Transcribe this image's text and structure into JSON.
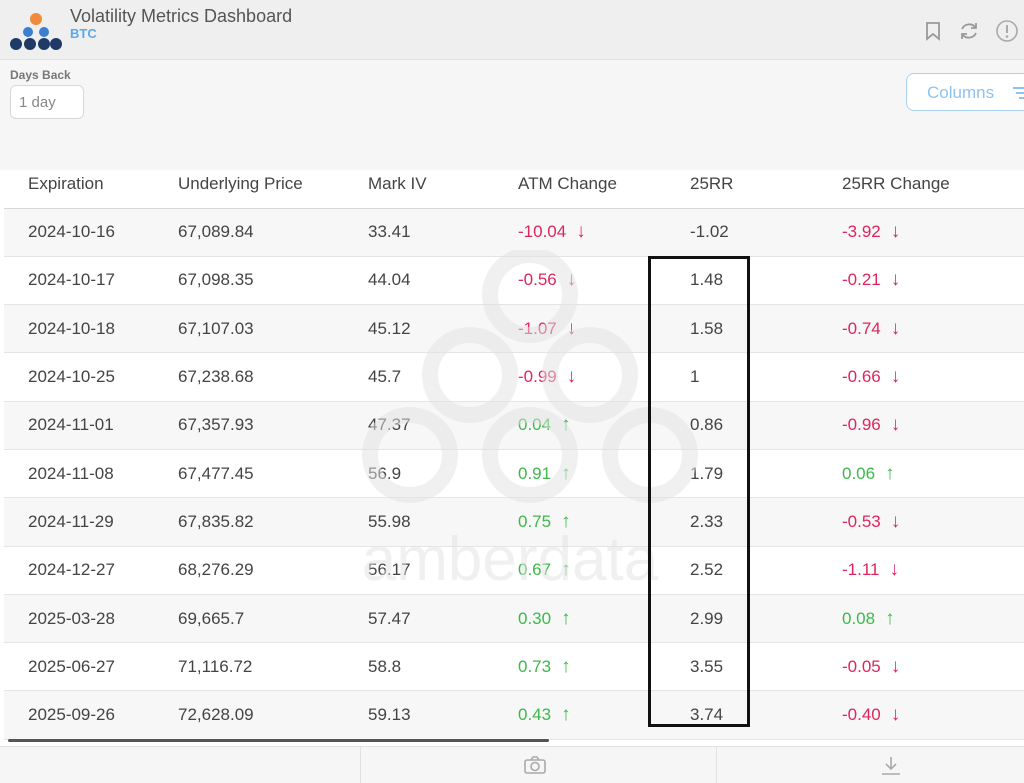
{
  "header": {
    "title": "Volatility Metrics Dashboard",
    "subtitle": "BTC",
    "icons": [
      "bookmark-icon",
      "refresh-icon",
      "info-icon"
    ]
  },
  "filters": {
    "days_back_label": "Days Back",
    "days_back_value": "1 day",
    "columns_label": "Columns"
  },
  "table": {
    "headers": [
      "Expiration",
      "Underlying Price",
      "Mark IV",
      "ATM Change",
      "25RR",
      "25RR Change"
    ],
    "rows": [
      {
        "exp": "2024-10-16",
        "und": "67,089.84",
        "mark": "33.41",
        "atm": "-10.04",
        "atm_dir": "down",
        "rr": "-1.02",
        "rrc": "-3.92",
        "rrc_dir": "down"
      },
      {
        "exp": "2024-10-17",
        "und": "67,098.35",
        "mark": "44.04",
        "atm": "-0.56",
        "atm_dir": "down",
        "rr": "1.48",
        "rrc": "-0.21",
        "rrc_dir": "down"
      },
      {
        "exp": "2024-10-18",
        "und": "67,107.03",
        "mark": "45.12",
        "atm": "-1.07",
        "atm_dir": "down",
        "rr": "1.58",
        "rrc": "-0.74",
        "rrc_dir": "down"
      },
      {
        "exp": "2024-10-25",
        "und": "67,238.68",
        "mark": "45.7",
        "atm": "-0.99",
        "atm_dir": "down",
        "rr": "1",
        "rrc": "-0.66",
        "rrc_dir": "down"
      },
      {
        "exp": "2024-11-01",
        "und": "67,357.93",
        "mark": "47.37",
        "atm": "0.04",
        "atm_dir": "up",
        "rr": "0.86",
        "rrc": "-0.96",
        "rrc_dir": "down"
      },
      {
        "exp": "2024-11-08",
        "und": "67,477.45",
        "mark": "56.9",
        "atm": "0.91",
        "atm_dir": "up",
        "rr": "1.79",
        "rrc": "0.06",
        "rrc_dir": "up"
      },
      {
        "exp": "2024-11-29",
        "und": "67,835.82",
        "mark": "55.98",
        "atm": "0.75",
        "atm_dir": "up",
        "rr": "2.33",
        "rrc": "-0.53",
        "rrc_dir": "down"
      },
      {
        "exp": "2024-12-27",
        "und": "68,276.29",
        "mark": "56.17",
        "atm": "0.67",
        "atm_dir": "up",
        "rr": "2.52",
        "rrc": "-1.11",
        "rrc_dir": "down"
      },
      {
        "exp": "2025-03-28",
        "und": "69,665.7",
        "mark": "57.47",
        "atm": "0.30",
        "atm_dir": "up",
        "rr": "2.99",
        "rrc": "0.08",
        "rrc_dir": "up"
      },
      {
        "exp": "2025-06-27",
        "und": "71,116.72",
        "mark": "58.8",
        "atm": "0.73",
        "atm_dir": "up",
        "rr": "3.55",
        "rrc": "-0.05",
        "rrc_dir": "down"
      },
      {
        "exp": "2025-09-26",
        "und": "72,628.09",
        "mark": "59.13",
        "atm": "0.43",
        "atm_dir": "up",
        "rr": "3.74",
        "rrc": "-0.40",
        "rrc_dir": "down"
      }
    ]
  },
  "watermark": {
    "text": "amberdata"
  },
  "footer": {
    "icons": [
      "camera-icon",
      "download-icon"
    ]
  },
  "colors": {
    "positive": "#3cb94a",
    "negative": "#e0245e",
    "accent": "#5aa8ee"
  }
}
